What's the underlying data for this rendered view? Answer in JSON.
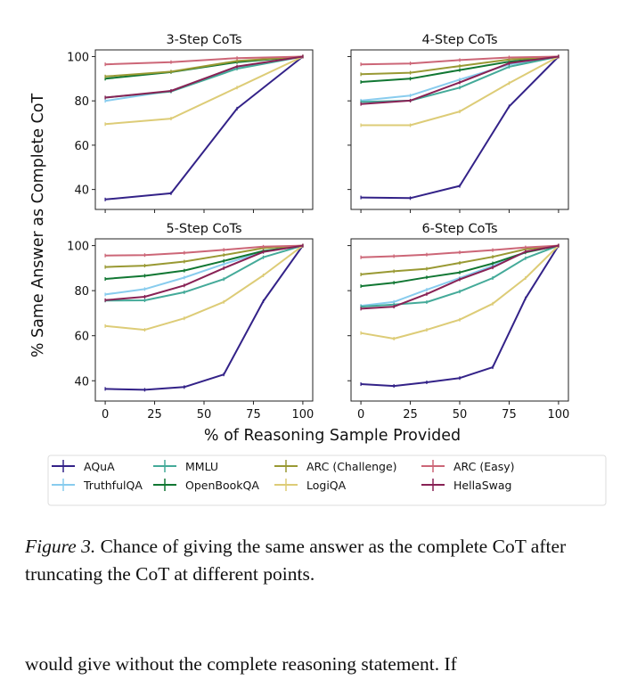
{
  "chart_data": {
    "type": "line",
    "ylabel": "% Same Answer as Complete CoT",
    "xlabel": "% of Reasoning Sample Provided",
    "ylim": [
      31,
      103
    ],
    "xlim": [
      -5,
      105
    ],
    "yticks": [
      40,
      60,
      80,
      100
    ],
    "xticks": [
      0,
      25,
      50,
      75,
      100
    ],
    "grid": false,
    "legend": {
      "placement": "bottom",
      "entries": [
        "AQuA",
        "TruthfulQA",
        "MMLU",
        "OpenBookQA",
        "ARC (Challenge)",
        "LogiQA",
        "ARC (Easy)",
        "HellaSwag"
      ]
    },
    "colors": {
      "AQuA": "#332288",
      "TruthfulQA": "#88CCEE",
      "MMLU": "#44AA99",
      "OpenBookQA": "#117733",
      "ARC (Challenge)": "#999933",
      "LogiQA": "#DDCC77",
      "ARC (Easy)": "#CC6677",
      "HellaSwag": "#882255"
    },
    "panels": [
      {
        "title": "3-Step CoTs",
        "x": [
          0,
          33.3,
          66.7,
          100
        ],
        "series": [
          {
            "name": "AQuA",
            "values": [
              35.5,
              38.3,
              76.5,
              100
            ]
          },
          {
            "name": "TruthfulQA",
            "values": [
              80,
              84.5,
              95,
              100
            ]
          },
          {
            "name": "MMLU",
            "values": [
              81.5,
              84.2,
              94.5,
              100
            ]
          },
          {
            "name": "OpenBookQA",
            "values": [
              90,
              93,
              97.5,
              100
            ]
          },
          {
            "name": "ARC (Challenge)",
            "values": [
              91,
              93.2,
              98,
              100
            ]
          },
          {
            "name": "LogiQA",
            "values": [
              69.5,
              72,
              86,
              100
            ]
          },
          {
            "name": "ARC (Easy)",
            "values": [
              96.5,
              97.5,
              99.3,
              100
            ]
          },
          {
            "name": "HellaSwag",
            "values": [
              81.5,
              84.5,
              95.5,
              100
            ]
          }
        ]
      },
      {
        "title": "4-Step CoTs",
        "x": [
          0,
          25,
          50,
          75,
          100
        ],
        "series": [
          {
            "name": "AQuA",
            "values": [
              36.4,
              36.1,
              41.6,
              77.5,
              100
            ]
          },
          {
            "name": "TruthfulQA",
            "values": [
              80.1,
              82.4,
              89.6,
              96.4,
              100
            ]
          },
          {
            "name": "MMLU",
            "values": [
              79.5,
              80.1,
              86,
              95.4,
              100
            ]
          },
          {
            "name": "OpenBookQA",
            "values": [
              88.5,
              90,
              93.9,
              97.7,
              100
            ]
          },
          {
            "name": "ARC (Challenge)",
            "values": [
              92,
              92.7,
              95.7,
              98.7,
              100
            ]
          },
          {
            "name": "LogiQA",
            "values": [
              69,
              69,
              75.2,
              88,
              100
            ]
          },
          {
            "name": "ARC (Easy)",
            "values": [
              96.5,
              96.9,
              98.4,
              99.6,
              100
            ]
          },
          {
            "name": "HellaSwag",
            "values": [
              78.6,
              80.1,
              88.3,
              97,
              100
            ]
          }
        ]
      },
      {
        "title": "5-Step CoTs",
        "x": [
          0,
          20,
          40,
          60,
          80,
          100
        ],
        "series": [
          {
            "name": "AQuA",
            "values": [
              36.4,
              36,
              37.2,
              42.8,
              75.3,
              100
            ]
          },
          {
            "name": "TruthfulQA",
            "values": [
              78.3,
              80.7,
              85.8,
              91.8,
              97.2,
              100
            ]
          },
          {
            "name": "MMLU",
            "values": [
              75.6,
              75.7,
              79.3,
              85.1,
              94.8,
              100
            ]
          },
          {
            "name": "OpenBookQA",
            "values": [
              85.2,
              86.6,
              88.9,
              93.2,
              97.6,
              100
            ]
          },
          {
            "name": "ARC (Challenge)",
            "values": [
              90.5,
              91.1,
              92.9,
              95.8,
              98.9,
              100
            ]
          },
          {
            "name": "LogiQA",
            "values": [
              64.3,
              62.6,
              67.7,
              75,
              86.8,
              100
            ]
          },
          {
            "name": "ARC (Easy)",
            "values": [
              95.6,
              95.8,
              96.8,
              98.1,
              99.5,
              100
            ]
          },
          {
            "name": "HellaSwag",
            "values": [
              75.8,
              77.3,
              82.3,
              90,
              97.2,
              100
            ]
          }
        ]
      },
      {
        "title": "6-Step CoTs",
        "x": [
          0,
          16.7,
          33.3,
          50,
          66.7,
          83.3,
          100
        ],
        "series": [
          {
            "name": "AQuA",
            "values": [
              38.5,
              37.7,
              39.3,
              41.2,
              46,
              76.6,
              100
            ]
          },
          {
            "name": "TruthfulQA",
            "values": [
              73.3,
              75,
              80.4,
              85.6,
              91,
              97,
              100
            ]
          },
          {
            "name": "MMLU",
            "values": [
              72.9,
              73.8,
              74.9,
              79.6,
              85.6,
              94.4,
              100
            ]
          },
          {
            "name": "OpenBookQA",
            "values": [
              82,
              83.5,
              85.9,
              88.1,
              92.1,
              97,
              100
            ]
          },
          {
            "name": "ARC (Challenge)",
            "values": [
              87.2,
              88.6,
              89.7,
              92.3,
              95,
              98.4,
              100
            ]
          },
          {
            "name": "LogiQA",
            "values": [
              61.2,
              58.7,
              62.6,
              67.1,
              74.2,
              85.6,
              100
            ]
          },
          {
            "name": "ARC (Easy)",
            "values": [
              94.8,
              95.3,
              96,
              97,
              98,
              99.2,
              100
            ]
          },
          {
            "name": "HellaSwag",
            "values": [
              72,
              72.9,
              78.5,
              85,
              90.3,
              97.3,
              100
            ]
          }
        ]
      }
    ]
  },
  "caption": {
    "label": "Figure 3.",
    "text": " Chance of giving the same answer as the complete CoT after truncating the CoT at different points."
  },
  "body_text": "would give without the complete reasoning statement. If"
}
